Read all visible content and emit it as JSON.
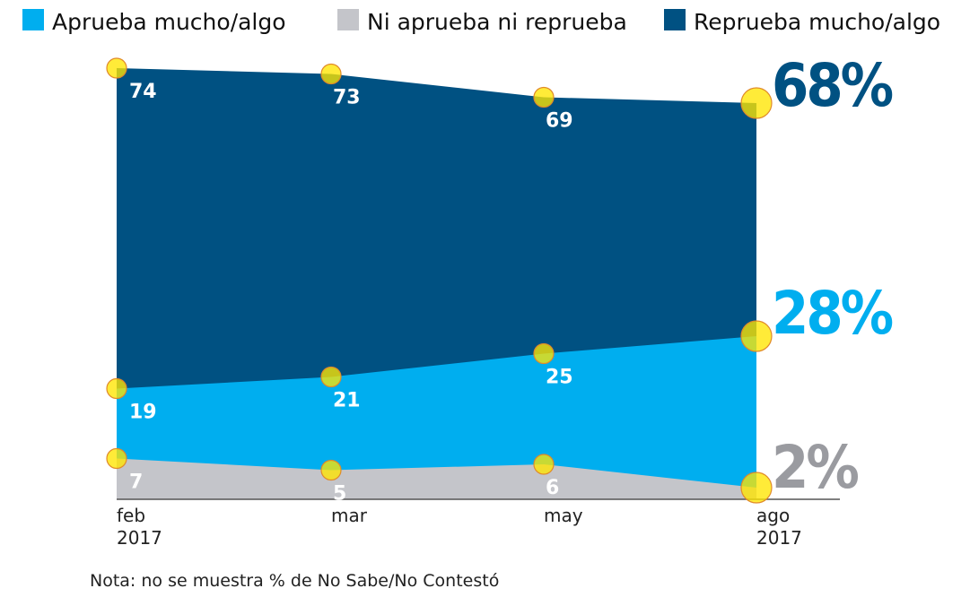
{
  "chart_data": {
    "type": "area",
    "title": "",
    "xlabel": "",
    "ylabel": "",
    "categories": [
      [
        "feb",
        "2017"
      ],
      [
        "mar",
        ""
      ],
      [
        "may",
        ""
      ],
      [
        "ago",
        "2017"
      ]
    ],
    "ylim": [
      0,
      74
    ],
    "grid": false,
    "legend_position": "top",
    "series": [
      {
        "name": "Reprueba mucho/algo",
        "values": [
          74,
          73,
          69,
          68
        ],
        "color": "#005182",
        "final_label": "68%"
      },
      {
        "name": "Aprueba mucho/algo",
        "values": [
          19,
          21,
          25,
          28
        ],
        "color": "#00aeef",
        "final_label": "28%"
      },
      {
        "name": "Ni aprueba ni reprueba",
        "values": [
          7,
          5,
          6,
          2
        ],
        "color": "#c4c5ca",
        "final_label": "2%"
      }
    ],
    "label_colors": {
      "Reprueba mucho/algo": "#005182",
      "Aprueba mucho/algo": "#00aeef",
      "Ni aprueba ni reprueba": "#9a9ba0"
    },
    "marker_color": "#ffe600",
    "legend": [
      "Aprueba mucho/algo",
      "Ni aprueba ni reprueba",
      "Reprueba mucho/algo"
    ],
    "note": "Nota: no se muestra % de No Sabe/No Contestó"
  }
}
